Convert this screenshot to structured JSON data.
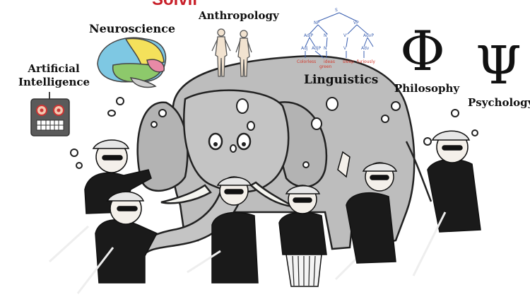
{
  "title": "Solving Intelligence",
  "fields": {
    "neuroscience": "Neuroscience",
    "anthropology": "Anthropology",
    "artificial_intelligence": "Artificial Intelligence",
    "linguistics": "Linguistics",
    "philosophy": "Philosophy",
    "psychology": "Psychology"
  },
  "symbols": {
    "phi": "Φ",
    "psi": "Ψ"
  },
  "parse_tree_words": [
    "Colorless",
    "green",
    "ideas",
    "sleep",
    "furiously"
  ],
  "colors": {
    "title": "#c8202a",
    "elephant": "#b9b9b9",
    "suit": "#1a1a1a",
    "robot": "#5a5a5a"
  }
}
